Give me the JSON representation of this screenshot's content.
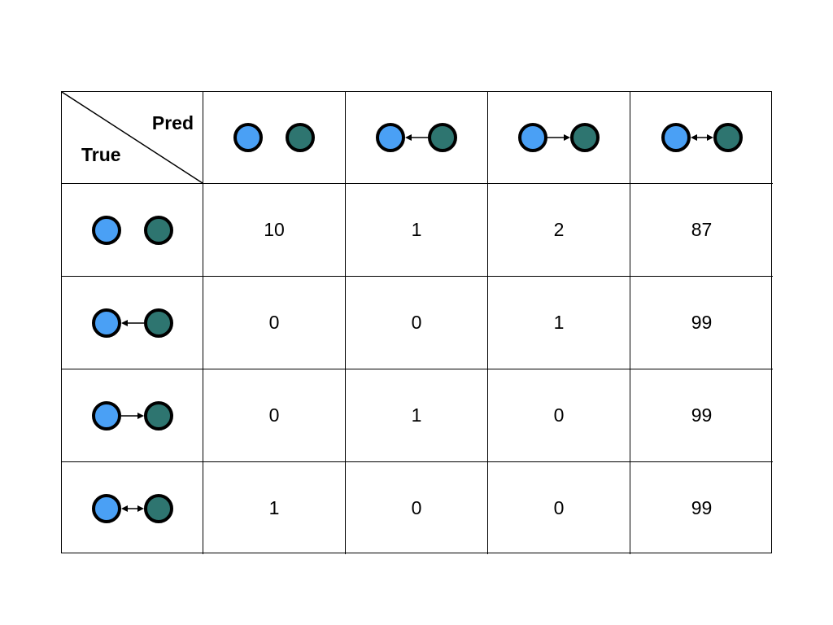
{
  "header": {
    "pred_label": "Pred",
    "true_label": "True"
  },
  "relations": [
    {
      "id": "none",
      "name": "independent",
      "arrow": "none"
    },
    {
      "id": "left",
      "name": "green-to-blue",
      "arrow": "left"
    },
    {
      "id": "right",
      "name": "blue-to-green",
      "arrow": "right"
    },
    {
      "id": "both",
      "name": "bidirectional",
      "arrow": "both"
    }
  ],
  "node_colors": {
    "blue": "#4aa0f5",
    "green": "#2e7570",
    "outline": "#000000"
  },
  "rows": [
    {
      "relation": "none",
      "values": [
        "10",
        "1",
        "2",
        "87"
      ]
    },
    {
      "relation": "left",
      "values": [
        "0",
        "0",
        "1",
        "99"
      ]
    },
    {
      "relation": "right",
      "values": [
        "0",
        "1",
        "0",
        "99"
      ]
    },
    {
      "relation": "both",
      "values": [
        "1",
        "0",
        "0",
        "99"
      ]
    }
  ]
}
